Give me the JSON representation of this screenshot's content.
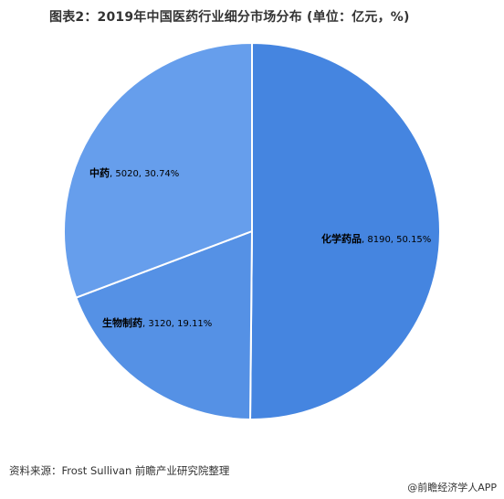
{
  "title": "图表2：2019年中国医药行业细分市场分布 (单位：亿元，%)",
  "chart_data": {
    "type": "pie",
    "unit": "亿元",
    "slices": [
      {
        "name": "化学药品",
        "value": 8190,
        "percent": "50.15%",
        "color": "#4585e0"
      },
      {
        "name": "生物制药",
        "value": 3120,
        "percent": "19.11%",
        "color": "#5591e5"
      },
      {
        "name": "中药",
        "value": 5020,
        "percent": "30.74%",
        "color": "#669eec"
      }
    ]
  },
  "footer": {
    "source": "资料来源：Frost Sullivan 前瞻产业研究院整理",
    "attribution": "@前瞻经济学人APP"
  }
}
